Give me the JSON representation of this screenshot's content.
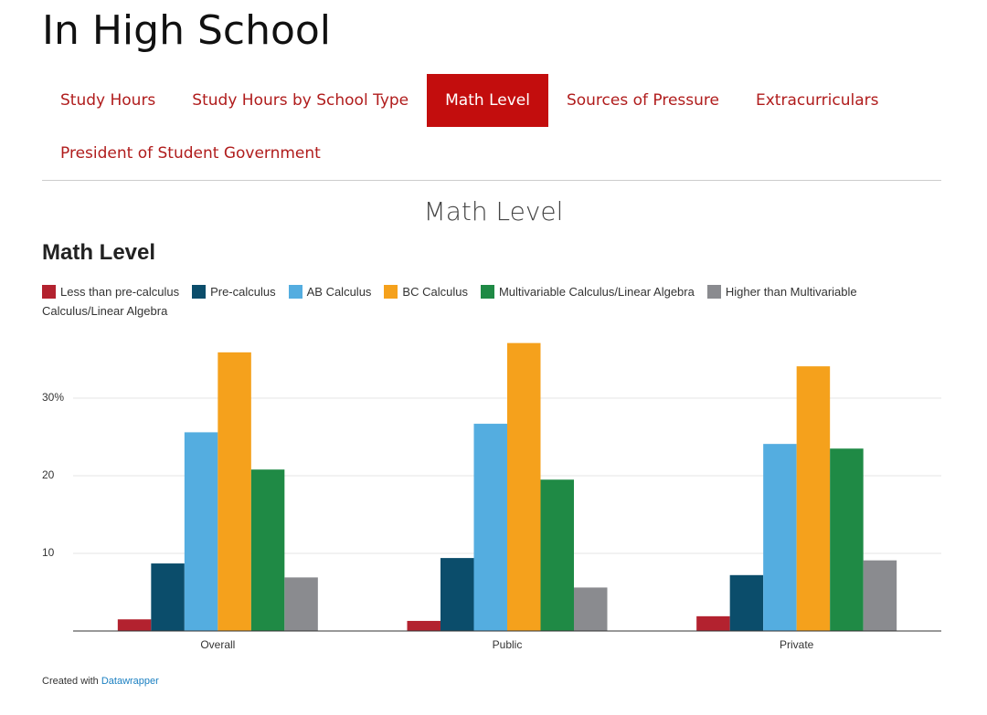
{
  "header": {
    "title": "In High School"
  },
  "tabs": [
    "Study Hours",
    "Study Hours by School Type",
    "Math Level",
    "Sources of Pressure",
    "Extracurriculars",
    "President of Student Government"
  ],
  "active_tab": 2,
  "section_title": "Math Level",
  "chart_data": {
    "type": "bar",
    "title": "Math Level",
    "categories": [
      "Overall",
      "Public",
      "Private"
    ],
    "series": [
      {
        "name": "Less than pre-calculus",
        "color": "#b3222f",
        "values": [
          1.5,
          1.3,
          1.9
        ]
      },
      {
        "name": "Pre-calculus",
        "color": "#0b4d6b",
        "values": [
          8.7,
          9.4,
          7.2
        ]
      },
      {
        "name": "AB Calculus",
        "color": "#54ade0",
        "values": [
          25.6,
          26.7,
          24.1
        ]
      },
      {
        "name": "BC Calculus",
        "color": "#f5a11c",
        "values": [
          35.9,
          37.1,
          34.1
        ]
      },
      {
        "name": "Multivariable Calculus/Linear Algebra",
        "color": "#1f8a45",
        "values": [
          20.8,
          19.5,
          23.5
        ]
      },
      {
        "name": "Higher than Multivariable Calculus/Linear Algebra",
        "color": "#8a8b8f",
        "values": [
          6.9,
          5.6,
          9.1
        ]
      }
    ],
    "ylim": [
      0,
      38
    ],
    "yticks": [
      10,
      20,
      {
        "value": 30,
        "label": "30%"
      }
    ],
    "grid": true
  },
  "footer": {
    "text": "Created with",
    "link": "Datawrapper"
  }
}
